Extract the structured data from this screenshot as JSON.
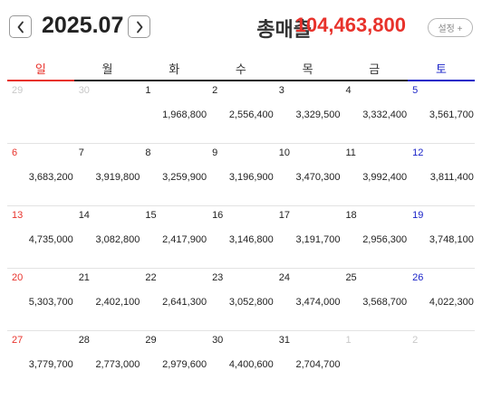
{
  "header": {
    "month": "2025.07",
    "total_label": "총매출",
    "total_value": "104,463,800",
    "settings_label": "설정 +"
  },
  "weekdays": [
    "일",
    "월",
    "화",
    "수",
    "목",
    "금",
    "토"
  ],
  "weeks": [
    [
      {
        "date": "29",
        "amount": ""
      },
      {
        "date": "30",
        "amount": ""
      },
      {
        "date": "1",
        "amount": "1,968,800"
      },
      {
        "date": "2",
        "amount": "2,556,400"
      },
      {
        "date": "3",
        "amount": "3,329,500"
      },
      {
        "date": "4",
        "amount": "3,332,400"
      },
      {
        "date": "5",
        "amount": "3,561,700"
      }
    ],
    [
      {
        "date": "6",
        "amount": "3,683,200"
      },
      {
        "date": "7",
        "amount": "3,919,800"
      },
      {
        "date": "8",
        "amount": "3,259,900"
      },
      {
        "date": "9",
        "amount": "3,196,900"
      },
      {
        "date": "10",
        "amount": "3,470,300"
      },
      {
        "date": "11",
        "amount": "3,992,400"
      },
      {
        "date": "12",
        "amount": "3,811,400"
      }
    ],
    [
      {
        "date": "13",
        "amount": "4,735,000"
      },
      {
        "date": "14",
        "amount": "3,082,800"
      },
      {
        "date": "15",
        "amount": "2,417,900"
      },
      {
        "date": "16",
        "amount": "3,146,800"
      },
      {
        "date": "17",
        "amount": "3,191,700"
      },
      {
        "date": "18",
        "amount": "2,956,300"
      },
      {
        "date": "19",
        "amount": "3,748,100"
      }
    ],
    [
      {
        "date": "20",
        "amount": "5,303,700"
      },
      {
        "date": "21",
        "amount": "2,402,100"
      },
      {
        "date": "22",
        "amount": "2,641,300"
      },
      {
        "date": "23",
        "amount": "3,052,800"
      },
      {
        "date": "24",
        "amount": "3,474,000"
      },
      {
        "date": "25",
        "amount": "3,568,700"
      },
      {
        "date": "26",
        "amount": "4,022,300"
      }
    ],
    [
      {
        "date": "27",
        "amount": "3,779,700"
      },
      {
        "date": "28",
        "amount": "2,773,000"
      },
      {
        "date": "29",
        "amount": "2,979,600"
      },
      {
        "date": "30",
        "amount": "4,400,600"
      },
      {
        "date": "31",
        "amount": "2,704,700"
      },
      {
        "date": "1",
        "amount": ""
      },
      {
        "date": "2",
        "amount": ""
      }
    ]
  ],
  "other_month_cells": [
    [
      0,
      0
    ],
    [
      0,
      1
    ],
    [
      4,
      5
    ],
    [
      4,
      6
    ]
  ],
  "icons": {
    "prev": "chevron-left-icon",
    "next": "chevron-right-icon"
  },
  "colors": {
    "sunday": "#e8322b",
    "saturday": "#1a23c8",
    "total": "#e8322b",
    "other_month": "#c8c8c8"
  }
}
